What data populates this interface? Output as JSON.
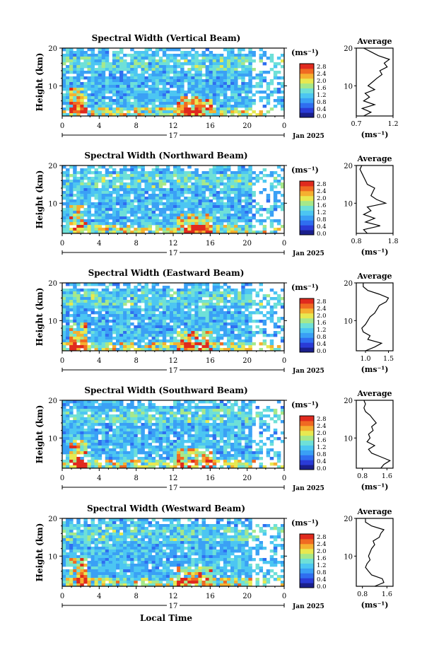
{
  "colors": {
    "scale": [
      "#1a1f8c",
      "#2a3bd6",
      "#2f6ef0",
      "#3aa0f5",
      "#4cc6f2",
      "#6ee0d8",
      "#a6e88a",
      "#e8e850",
      "#f5b030",
      "#f06a22",
      "#e02a1e"
    ],
    "missing": "#ffffff",
    "line": "#000000"
  },
  "colorbar": {
    "unit": "(ms⁻¹)",
    "ticks": [
      "2.8",
      "2.4",
      "2.0",
      "1.6",
      "1.2",
      "0.8",
      "0.4",
      "0.0"
    ]
  },
  "shared": {
    "x_ticks": [
      "0",
      "4",
      "8",
      "12",
      "16",
      "20",
      "0"
    ],
    "day_label": "17",
    "date_label": "Jan 2025",
    "ylabel": "Height (km)",
    "y_ticks": [
      "20",
      "10"
    ],
    "xlabel": "Local Time",
    "avg_title": "Average",
    "avg_unit": "(ms⁻¹)"
  },
  "chart_data": [
    {
      "type": "heatmap",
      "title": "Spectral Width (Vertical Beam)",
      "ylim": [
        2,
        20
      ],
      "xlim": [
        0,
        24
      ],
      "profile_xlim": [
        0.7,
        1.2
      ],
      "profile_ticks": [
        "0.7",
        "1.2"
      ],
      "profile": [
        [
          0.8,
          2
        ],
        [
          0.9,
          3
        ],
        [
          0.78,
          4
        ],
        [
          0.95,
          5
        ],
        [
          0.8,
          6
        ],
        [
          0.88,
          7
        ],
        [
          0.82,
          8
        ],
        [
          0.95,
          9
        ],
        [
          0.86,
          10
        ],
        [
          0.92,
          11
        ],
        [
          0.98,
          12
        ],
        [
          1.05,
          13
        ],
        [
          1.02,
          14
        ],
        [
          1.12,
          15
        ],
        [
          1.08,
          16
        ],
        [
          1.15,
          17
        ],
        [
          1.0,
          18
        ],
        [
          0.9,
          19
        ],
        [
          0.8,
          20
        ]
      ]
    },
    {
      "type": "heatmap",
      "title": "Spectral Width (Northward Beam)",
      "ylim": [
        2,
        20
      ],
      "xlim": [
        0,
        24
      ],
      "profile_xlim": [
        0.8,
        1.8
      ],
      "profile_ticks": [
        "0.8",
        "1.8"
      ],
      "profile": [
        [
          1.1,
          2
        ],
        [
          1.0,
          3
        ],
        [
          1.45,
          4
        ],
        [
          1.05,
          5
        ],
        [
          1.3,
          6
        ],
        [
          1.0,
          7
        ],
        [
          1.2,
          8
        ],
        [
          1.1,
          9
        ],
        [
          1.6,
          10
        ],
        [
          1.35,
          11
        ],
        [
          1.2,
          12
        ],
        [
          1.25,
          13
        ],
        [
          1.3,
          14
        ],
        [
          1.1,
          15
        ],
        [
          1.05,
          16
        ],
        [
          1.0,
          17
        ],
        [
          0.95,
          18
        ],
        [
          0.9,
          19
        ],
        [
          0.95,
          20
        ]
      ]
    },
    {
      "type": "heatmap",
      "title": "Spectral Width (Eastward Beam)",
      "ylim": [
        2,
        20
      ],
      "xlim": [
        0,
        24
      ],
      "profile_xlim": [
        0.8,
        1.6
      ],
      "profile_ticks": [
        "1.0",
        "1.5"
      ],
      "profile": [
        [
          1.0,
          2
        ],
        [
          1.2,
          3
        ],
        [
          1.35,
          4
        ],
        [
          1.05,
          5
        ],
        [
          1.1,
          6
        ],
        [
          0.95,
          7
        ],
        [
          0.92,
          8
        ],
        [
          1.0,
          9
        ],
        [
          1.05,
          10
        ],
        [
          1.1,
          11
        ],
        [
          1.2,
          12
        ],
        [
          1.25,
          13
        ],
        [
          1.3,
          14
        ],
        [
          1.45,
          15
        ],
        [
          1.5,
          16
        ],
        [
          1.3,
          17
        ],
        [
          1.05,
          18
        ],
        [
          0.95,
          19
        ],
        [
          0.95,
          20
        ]
      ]
    },
    {
      "type": "heatmap",
      "title": "Spectral Width (Southward Beam)",
      "ylim": [
        2,
        20
      ],
      "xlim": [
        0,
        24
      ],
      "profile_xlim": [
        0.6,
        1.8
      ],
      "profile_ticks": [
        "0.8",
        "1.6"
      ],
      "profile": [
        [
          1.4,
          2
        ],
        [
          1.5,
          3
        ],
        [
          1.7,
          4
        ],
        [
          1.4,
          5
        ],
        [
          1.1,
          6
        ],
        [
          1.0,
          7
        ],
        [
          1.2,
          8
        ],
        [
          0.95,
          9
        ],
        [
          1.05,
          10
        ],
        [
          1.0,
          11
        ],
        [
          1.15,
          12
        ],
        [
          1.1,
          13
        ],
        [
          1.25,
          14
        ],
        [
          1.15,
          15
        ],
        [
          1.05,
          16
        ],
        [
          0.9,
          17
        ],
        [
          0.85,
          18
        ],
        [
          0.9,
          19
        ],
        [
          0.85,
          20
        ]
      ]
    },
    {
      "type": "heatmap",
      "title": "Spectral Width (Westward Beam)",
      "ylim": [
        2,
        20
      ],
      "xlim": [
        0,
        24
      ],
      "profile_xlim": [
        0.6,
        1.8
      ],
      "profile_ticks": [
        "0.8",
        "1.6"
      ],
      "profile": [
        [
          1.2,
          2
        ],
        [
          1.5,
          3
        ],
        [
          1.45,
          4
        ],
        [
          1.1,
          5
        ],
        [
          1.0,
          6
        ],
        [
          0.9,
          7
        ],
        [
          0.95,
          8
        ],
        [
          1.05,
          9
        ],
        [
          1.0,
          10
        ],
        [
          1.05,
          11
        ],
        [
          1.1,
          12
        ],
        [
          1.2,
          13
        ],
        [
          1.15,
          14
        ],
        [
          1.35,
          15
        ],
        [
          1.4,
          16
        ],
        [
          1.5,
          17
        ],
        [
          1.1,
          18
        ],
        [
          0.9,
          19
        ],
        [
          0.9,
          20
        ]
      ]
    }
  ]
}
